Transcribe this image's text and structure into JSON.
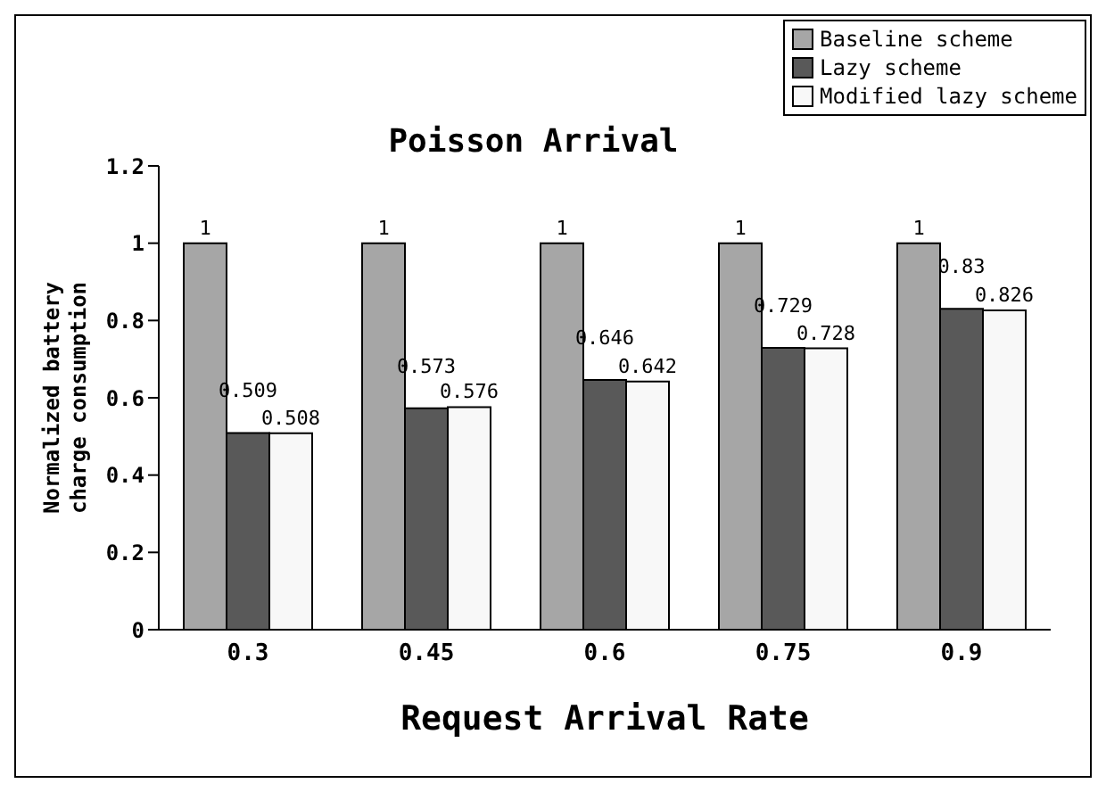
{
  "chart_data": {
    "type": "bar",
    "title": "Poisson Arrival",
    "xlabel": "Request Arrival Rate",
    "ylabel": "Normalized battery charge consumption",
    "categories": [
      "0.3",
      "0.45",
      "0.6",
      "0.75",
      "0.9"
    ],
    "series": [
      {
        "name": "Baseline scheme",
        "color": "#a6a6a6",
        "values": [
          1,
          1,
          1,
          1,
          1
        ]
      },
      {
        "name": "Lazy scheme",
        "color": "#595959",
        "values": [
          0.509,
          0.573,
          0.646,
          0.729,
          0.83
        ]
      },
      {
        "name": "Modified lazy scheme",
        "color": "#f8f8f8",
        "values": [
          0.508,
          0.576,
          0.642,
          0.728,
          0.826
        ]
      }
    ],
    "ylim": [
      0,
      1.2
    ],
    "yticks": [
      0,
      0.2,
      0.4,
      0.6,
      0.8,
      1,
      1.2
    ],
    "grid": false,
    "legend": "top right",
    "data_labels": true
  }
}
